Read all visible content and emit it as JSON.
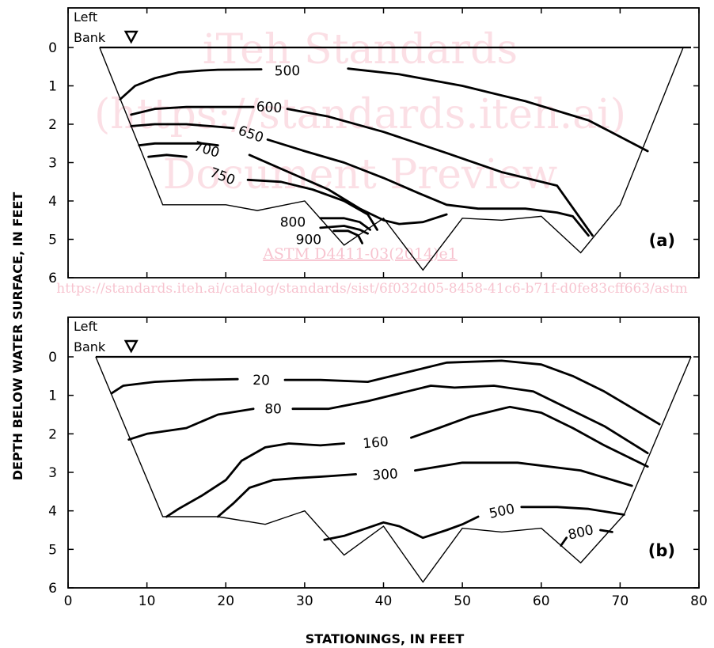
{
  "watermark": {
    "line1": "iTeh Standards",
    "line2": "(https://standards.iteh.ai)",
    "line3": "Document Preview",
    "code": "ASTM D4411-03(2014)e1",
    "url": "https://standards.iteh.ai/catalog/standards/sist/6f032d05-8458-41c6-b71f-d0fe83cff663/astm"
  },
  "chart_data": {
    "type": "line",
    "xlabel": "STATIONINGS, IN FEET",
    "ylabel": "DEPTH BELOW WATER SURFACE, IN FEET",
    "xlim": [
      0,
      80
    ],
    "ylim": [
      0,
      6
    ],
    "y_inverted": true,
    "x_ticks": [
      "0",
      "10",
      "20",
      "30",
      "40",
      "50",
      "60",
      "70",
      "80"
    ],
    "y_ticks": [
      "0",
      "1",
      "2",
      "3",
      "4",
      "5",
      "6"
    ],
    "panels": [
      {
        "id": "a",
        "letter": "(a)",
        "bank_line1": "Left",
        "bank_line2": "Bank",
        "bank_station": 8,
        "water_surface": [
          [
            4,
            0
          ],
          [
            79,
            0
          ]
        ],
        "bed_profile": [
          [
            4,
            0
          ],
          [
            12,
            4.1
          ],
          [
            20,
            4.1
          ],
          [
            24,
            4.25
          ],
          [
            30,
            4
          ],
          [
            35,
            5.15
          ],
          [
            40,
            4.45
          ],
          [
            45,
            5.8
          ],
          [
            50,
            4.45
          ],
          [
            55,
            4.5
          ],
          [
            60,
            4.4
          ],
          [
            65,
            5.35
          ],
          [
            70,
            4.1
          ],
          [
            78,
            0
          ]
        ],
        "contours": [
          {
            "label": "500",
            "label_at": [
              27.8,
              0.6
            ],
            "segments": [
              [
                [
                  6.6,
                  1.35
                ],
                [
                  8.5,
                  1.0
                ],
                [
                  11,
                  0.8
                ],
                [
                  14,
                  0.65
                ],
                [
                  17,
                  0.6
                ],
                [
                  19,
                  0.58
                ],
                [
                  24.5,
                  0.57
                ]
              ],
              [
                [
                  35.5,
                  0.55
                ],
                [
                  42,
                  0.7
                ],
                [
                  50,
                  1.0
                ],
                [
                  58,
                  1.4
                ],
                [
                  66,
                  1.9
                ],
                [
                  73.5,
                  2.7
                ]
              ]
            ]
          },
          {
            "label": "600",
            "label_at": [
              25.5,
              1.55
            ],
            "segments": [
              [
                [
                  8,
                  1.75
                ],
                [
                  11,
                  1.6
                ],
                [
                  15,
                  1.55
                ],
                [
                  20,
                  1.55
                ],
                [
                  23.5,
                  1.55
                ]
              ],
              [
                [
                  27.8,
                  1.6
                ],
                [
                  33,
                  1.8
                ],
                [
                  40,
                  2.2
                ],
                [
                  48,
                  2.75
                ],
                [
                  55,
                  3.25
                ],
                [
                  62,
                  3.6
                ],
                [
                  66.5,
                  4.9
                ]
              ]
            ]
          },
          {
            "label": "650",
            "label_at": [
              23.2,
              2.25
            ],
            "segments": [
              [
                [
                  8,
                  2.05
                ],
                [
                  11,
                  2.0
                ],
                [
                  15,
                  2.0
                ],
                [
                  18,
                  2.05
                ],
                [
                  21,
                  2.1
                ]
              ],
              [
                [
                  25.3,
                  2.4
                ],
                [
                  30,
                  2.7
                ],
                [
                  35,
                  3.0
                ],
                [
                  40,
                  3.4
                ],
                [
                  44.5,
                  3.8
                ],
                [
                  48,
                  4.1
                ],
                [
                  52,
                  4.2
                ],
                [
                  58,
                  4.2
                ],
                [
                  62,
                  4.3
                ],
                [
                  64,
                  4.4
                ],
                [
                  66,
                  4.9
                ]
              ]
            ]
          },
          {
            "label": "700",
            "label_at": [
              17.6,
              2.65
            ],
            "segments": [
              [
                [
                  9,
                  2.55
                ],
                [
                  11,
                  2.5
                ],
                [
                  14,
                  2.5
                ],
                [
                  17,
                  2.5
                ],
                [
                  19,
                  2.55
                ]
              ],
              [
                [
                  23,
                  2.8
                ],
                [
                  28,
                  3.25
                ],
                [
                  33,
                  3.7
                ],
                [
                  37,
                  4.2
                ],
                [
                  40,
                  4.5
                ],
                [
                  42,
                  4.6
                ],
                [
                  45,
                  4.55
                ],
                [
                  48,
                  4.35
                ]
              ]
            ]
          },
          {
            "label": "750",
            "label_at": [
              19.6,
              3.35
            ],
            "segments": [
              [
                [
                  10.2,
                  2.85
                ],
                [
                  12.5,
                  2.8
                ],
                [
                  15,
                  2.85
                ]
              ],
              [
                [
                  22.8,
                  3.45
                ],
                [
                  27,
                  3.5
                ],
                [
                  31,
                  3.7
                ],
                [
                  35,
                  4.0
                ],
                [
                  38,
                  4.35
                ],
                [
                  39.2,
                  4.75
                ]
              ]
            ]
          },
          {
            "label": "800",
            "label_at": [
              28.5,
              4.55
            ],
            "segments": [
              [
                [
                  32,
                  4.45
                ],
                [
                  35,
                  4.45
                ],
                [
                  37,
                  4.55
                ],
                [
                  38.3,
                  4.75
                ]
              ],
              [
                [
                  32,
                  4.7
                ],
                [
                  35,
                  4.65
                ],
                [
                  37,
                  4.75
                ],
                [
                  38,
                  4.85
                ]
              ]
            ]
          },
          {
            "label": "900",
            "label_at": [
              30.5,
              5.0
            ],
            "segments": [
              [
                [
                  33.7,
                  4.78
                ],
                [
                  35.5,
                  4.78
                ],
                [
                  36.8,
                  4.9
                ],
                [
                  37.3,
                  5.1
                ]
              ]
            ]
          }
        ]
      },
      {
        "id": "b",
        "letter": "(b)",
        "bank_line1": "Left",
        "bank_line2": "Bank",
        "bank_station": 8,
        "water_surface": [
          [
            3.5,
            0
          ],
          [
            79,
            0
          ]
        ],
        "bed_profile": [
          [
            3.5,
            0
          ],
          [
            12,
            4.15
          ],
          [
            19,
            4.15
          ],
          [
            25,
            4.35
          ],
          [
            30,
            4
          ],
          [
            35,
            5.15
          ],
          [
            40,
            4.4
          ],
          [
            45,
            5.85
          ],
          [
            50,
            4.45
          ],
          [
            55,
            4.55
          ],
          [
            60,
            4.45
          ],
          [
            65,
            5.35
          ],
          [
            70.5,
            4.1
          ],
          [
            79,
            0
          ]
        ],
        "contours": [
          {
            "label": "20",
            "label_at": [
              24.5,
              0.6
            ],
            "segments": [
              [
                [
                  5.5,
                  0.95
                ],
                [
                  7,
                  0.75
                ],
                [
                  11,
                  0.65
                ],
                [
                  16,
                  0.6
                ],
                [
                  21.5,
                  0.58
                ]
              ],
              [
                [
                  27.5,
                  0.6
                ],
                [
                  32,
                  0.6
                ],
                [
                  38,
                  0.65
                ],
                [
                  43,
                  0.4
                ],
                [
                  48,
                  0.15
                ],
                [
                  55,
                  0.1
                ],
                [
                  60,
                  0.2
                ],
                [
                  64,
                  0.5
                ],
                [
                  68,
                  0.9
                ],
                [
                  75,
                  1.75
                ]
              ]
            ]
          },
          {
            "label": "80",
            "label_at": [
              26,
              1.35
            ],
            "segments": [
              [
                [
                  7.7,
                  2.15
                ],
                [
                  10,
                  2.0
                ],
                [
                  15,
                  1.85
                ],
                [
                  19,
                  1.5
                ],
                [
                  22,
                  1.4
                ],
                [
                  23.5,
                  1.35
                ]
              ],
              [
                [
                  28.5,
                  1.35
                ],
                [
                  33,
                  1.35
                ],
                [
                  38,
                  1.15
                ],
                [
                  43,
                  0.9
                ],
                [
                  46,
                  0.75
                ],
                [
                  49,
                  0.8
                ],
                [
                  54,
                  0.75
                ],
                [
                  59,
                  0.9
                ],
                [
                  64,
                  1.4
                ],
                [
                  68,
                  1.8
                ],
                [
                  73.5,
                  2.5
                ]
              ]
            ]
          },
          {
            "label": "160",
            "label_at": [
              39,
              2.22
            ],
            "segments": [
              [
                [
                  12.5,
                  4.15
                ],
                [
                  14,
                  3.95
                ],
                [
                  17,
                  3.6
                ],
                [
                  20,
                  3.2
                ],
                [
                  22,
                  2.7
                ],
                [
                  25,
                  2.35
                ],
                [
                  28,
                  2.25
                ],
                [
                  32,
                  2.3
                ],
                [
                  35,
                  2.25
                ]
              ],
              [
                [
                  43.5,
                  2.1
                ],
                [
                  47,
                  1.85
                ],
                [
                  51,
                  1.55
                ],
                [
                  56,
                  1.3
                ],
                [
                  60,
                  1.45
                ],
                [
                  64,
                  1.85
                ],
                [
                  68,
                  2.3
                ],
                [
                  73.5,
                  2.85
                ]
              ]
            ]
          },
          {
            "label": "300",
            "label_at": [
              40.2,
              3.05
            ],
            "segments": [
              [
                [
                  19,
                  4.15
                ],
                [
                  21,
                  3.8
                ],
                [
                  23,
                  3.4
                ],
                [
                  26,
                  3.2
                ],
                [
                  29,
                  3.15
                ],
                [
                  33,
                  3.1
                ],
                [
                  36.5,
                  3.05
                ]
              ],
              [
                [
                  44,
                  2.95
                ],
                [
                  50,
                  2.75
                ],
                [
                  57,
                  2.75
                ],
                [
                  65,
                  2.95
                ],
                [
                  71.5,
                  3.35
                ]
              ]
            ]
          },
          {
            "label": "500",
            "label_at": [
              55,
              4.0
            ],
            "segments": [
              [
                [
                  32.5,
                  4.75
                ],
                [
                  35,
                  4.65
                ],
                [
                  40,
                  4.3
                ],
                [
                  42,
                  4.4
                ],
                [
                  45,
                  4.7
                ],
                [
                  48,
                  4.5
                ],
                [
                  50,
                  4.35
                ],
                [
                  52,
                  4.15
                ]
              ],
              [
                [
                  57.5,
                  3.9
                ],
                [
                  62,
                  3.9
                ],
                [
                  66,
                  3.95
                ],
                [
                  70.5,
                  4.1
                ]
              ]
            ]
          },
          {
            "label": "800",
            "label_at": [
              65,
              4.55
            ],
            "segments": [
              [
                [
                  62.5,
                  4.9
                ],
                [
                  63.2,
                  4.7
                ]
              ],
              [
                [
                  67.5,
                  4.5
                ],
                [
                  69,
                  4.55
                ]
              ]
            ]
          }
        ]
      }
    ]
  }
}
